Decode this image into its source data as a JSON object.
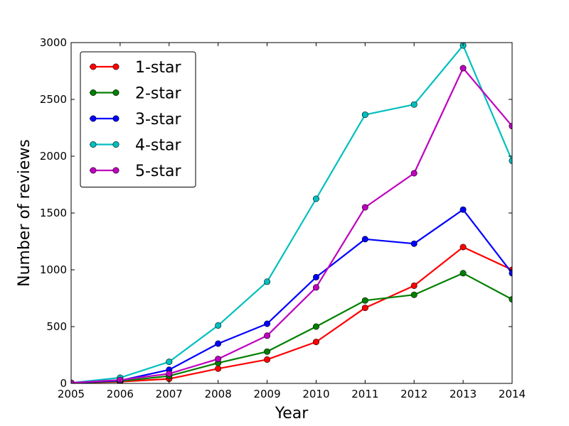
{
  "chart_data": {
    "type": "line",
    "title": "",
    "xlabel": "Year",
    "ylabel": "Number of reviews",
    "x": [
      2005,
      2006,
      2007,
      2008,
      2009,
      2010,
      2011,
      2012,
      2013,
      2014
    ],
    "xlim": [
      2005,
      2014
    ],
    "ylim": [
      0,
      3000
    ],
    "xticks": [
      2005,
      2006,
      2007,
      2008,
      2009,
      2010,
      2011,
      2012,
      2013,
      2014
    ],
    "yticks": [
      0,
      500,
      1000,
      1500,
      2000,
      2500,
      3000
    ],
    "grid": false,
    "legend_position": "top-left",
    "series": [
      {
        "name": "1-star",
        "color": "#ff0000",
        "values": [
          5,
          15,
          40,
          130,
          210,
          365,
          665,
          860,
          1200,
          1000
        ]
      },
      {
        "name": "2-star",
        "color": "#008000",
        "values": [
          5,
          20,
          65,
          180,
          280,
          500,
          730,
          780,
          970,
          740
        ]
      },
      {
        "name": "3-star",
        "color": "#0000ff",
        "values": [
          5,
          25,
          120,
          350,
          525,
          935,
          1270,
          1230,
          1530,
          970
        ]
      },
      {
        "name": "4-star",
        "color": "#00bfbf",
        "values": [
          5,
          50,
          190,
          510,
          895,
          1625,
          2365,
          2455,
          2975,
          1960
        ]
      },
      {
        "name": "5-star",
        "color": "#bf00bf",
        "values": [
          5,
          30,
          85,
          215,
          420,
          845,
          1550,
          1850,
          2775,
          2265
        ]
      }
    ]
  }
}
